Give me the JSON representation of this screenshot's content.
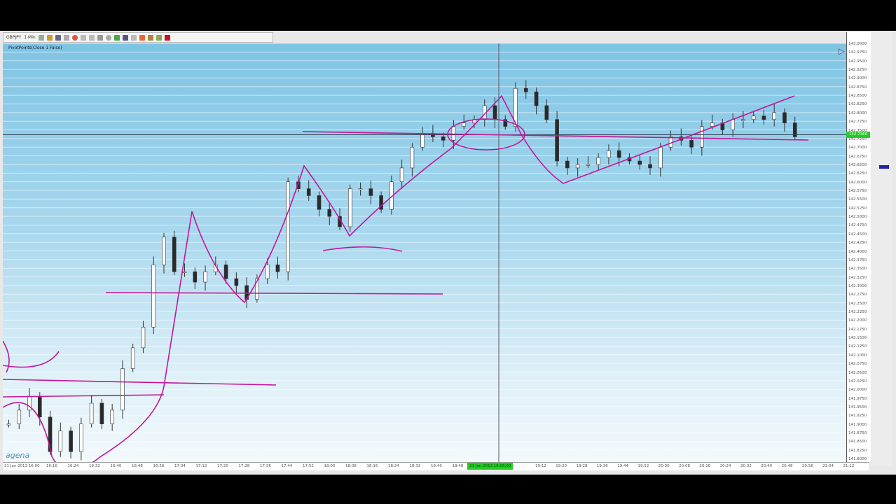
{
  "toolbar": {
    "symbol": "GBPJPY",
    "timeframe": "1 Min"
  },
  "indicator_label": "PivotPoints(Close 1 False)",
  "logo": "agena",
  "colors": {
    "up": "#ffffff",
    "down": "#2a2a2a",
    "annotation": "#c0179a",
    "cursor_label": "#22cc22"
  },
  "chart_data": {
    "type": "candlestick",
    "price_axis": {
      "max": 143.0,
      "min": 141.79,
      "step": 0.025
    },
    "current_price": "142.7360",
    "cursor_time": "21 Jan 2013 19:05:00",
    "closes": [
      141.9,
      141.94,
      141.98,
      141.92,
      141.82,
      141.88,
      141.82,
      141.9,
      141.96,
      141.9,
      141.94,
      142.06,
      142.12,
      142.18,
      142.36,
      142.44,
      142.34,
      142.34,
      142.31,
      142.34,
      142.36,
      142.32,
      142.3,
      142.26,
      142.32,
      142.36,
      142.34,
      142.6,
      142.58,
      142.56,
      142.52,
      142.5,
      142.47,
      142.58,
      142.58,
      142.56,
      142.52,
      142.6,
      142.64,
      142.7,
      142.74,
      142.73,
      142.72,
      142.76,
      142.77,
      142.78,
      142.82,
      142.78,
      142.76,
      142.87,
      142.86,
      142.82,
      142.78,
      142.66,
      142.64,
      142.65,
      142.65,
      142.67,
      142.69,
      142.67,
      142.66,
      142.65,
      142.64,
      142.7,
      142.73,
      142.72,
      142.7,
      142.76,
      142.77,
      142.75,
      142.78,
      142.78,
      142.79,
      142.78,
      142.8,
      142.77,
      142.73
    ],
    "time_labels": [
      "21 Jan 2013 16:00",
      "16:16",
      "16:24",
      "16:32",
      "16:40",
      "16:48",
      "16:56",
      "17:04",
      "17:12",
      "17:20",
      "17:28",
      "17:36",
      "17:44",
      "17:52",
      "18:00",
      "18:08",
      "18:16",
      "18:24",
      "18:32",
      "18:40",
      "18:48",
      "19:12",
      "19:20",
      "19:28",
      "19:36",
      "19:44",
      "19:52",
      "20:00",
      "20:08",
      "20:16",
      "20:24",
      "20:32",
      "20:40",
      "20:48",
      "20:56",
      "21:04",
      "21:12"
    ]
  }
}
